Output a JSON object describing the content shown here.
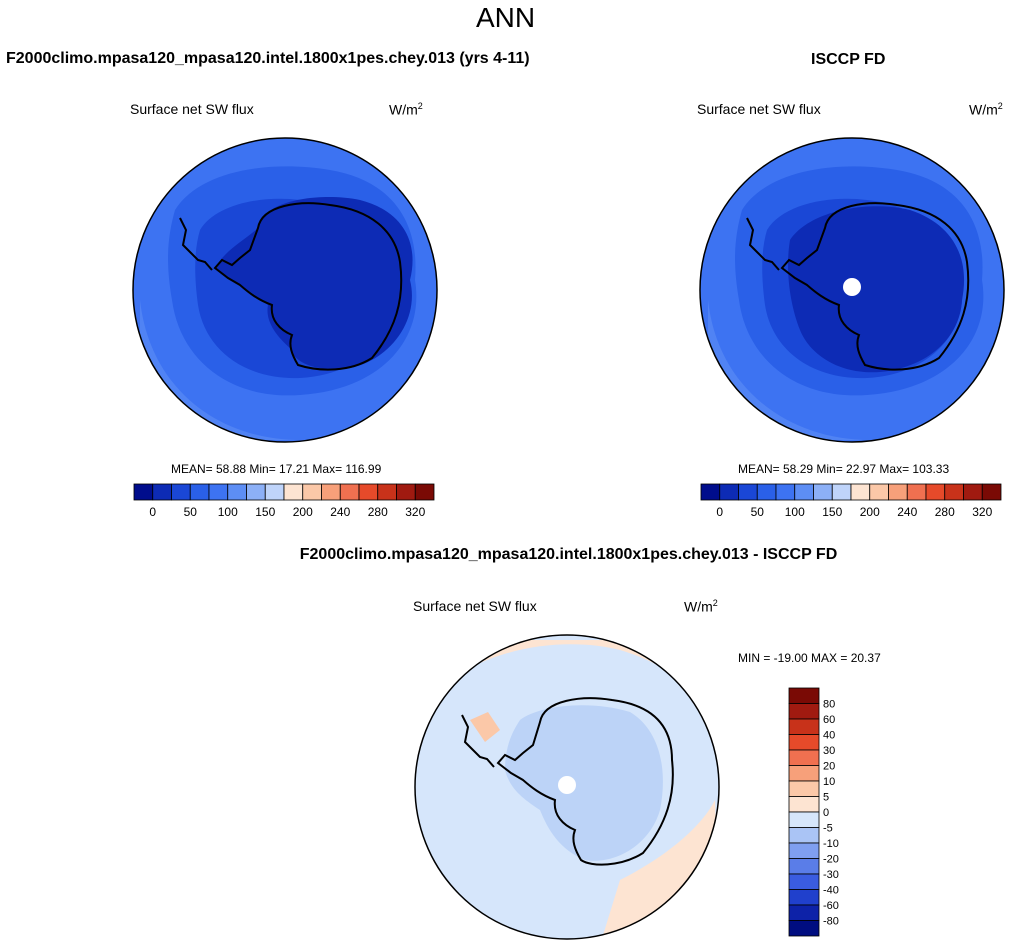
{
  "title": "ANN",
  "panels": [
    {
      "heading": "F2000climo.mpasa120_mpasa120.intel.1800x1pes.chey.013 (yrs 4-11)",
      "variable": "Surface net SW flux",
      "units_base": "W/m",
      "units_exp": "2",
      "stats": "MEAN=  58.88  Min=  17.21  Max= 116.99"
    },
    {
      "heading": "ISCCP FD",
      "variable": "Surface net SW flux",
      "units_base": "W/m",
      "units_exp": "2",
      "stats": "MEAN=  58.29  Min=  22.97  Max= 103.33"
    },
    {
      "heading": "F2000climo.mpasa120_mpasa120.intel.1800x1pes.chey.013 - ISCCP FD",
      "variable": "Surface net SW flux",
      "units_base": "W/m",
      "units_exp": "2",
      "stats": "MIN = -19.00 MAX =  20.37"
    }
  ],
  "chart_data": [
    {
      "type": "heatmap",
      "projection": "south-polar-stereographic",
      "title": "Surface net SW flux",
      "units": "W/m2",
      "stats": {
        "mean": 58.88,
        "min": 17.21,
        "max": 116.99
      },
      "colorbar_ticks": [
        "0",
        "50",
        "100",
        "150",
        "200",
        "240",
        "280",
        "320"
      ],
      "colorbar_colors": [
        "#000d8c",
        "#0d2bb5",
        "#1a47d6",
        "#2a60e8",
        "#3d73f2",
        "#5d8ef5",
        "#8cb0f7",
        "#bfd4fa",
        "#fde4d2",
        "#fbc8a8",
        "#f7a07a",
        "#f07050",
        "#e64a2a",
        "#c8321a",
        "#a01a10",
        "#7a0a05"
      ]
    },
    {
      "type": "heatmap",
      "projection": "south-polar-stereographic",
      "title": "Surface net SW flux",
      "units": "W/m2",
      "stats": {
        "mean": 58.29,
        "min": 22.97,
        "max": 103.33
      },
      "colorbar_ticks": [
        "0",
        "50",
        "100",
        "150",
        "200",
        "240",
        "280",
        "320"
      ],
      "colorbar_colors": [
        "#000d8c",
        "#0d2bb5",
        "#1a47d6",
        "#2a60e8",
        "#3d73f2",
        "#5d8ef5",
        "#8cb0f7",
        "#bfd4fa",
        "#fde4d2",
        "#fbc8a8",
        "#f7a07a",
        "#f07050",
        "#e64a2a",
        "#c8321a",
        "#a01a10",
        "#7a0a05"
      ]
    },
    {
      "type": "heatmap",
      "projection": "south-polar-stereographic",
      "title": "Surface net SW flux",
      "units": "W/m2",
      "stats": {
        "min": -19.0,
        "max": 20.37
      },
      "colorbar_ticks": [
        "80",
        "60",
        "40",
        "30",
        "20",
        "10",
        "5",
        "0",
        "-5",
        "-10",
        "-20",
        "-30",
        "-40",
        "-60",
        "-80"
      ],
      "colorbar_colors": [
        "#7a0a05",
        "#a01a10",
        "#c8321a",
        "#e64a2a",
        "#f07050",
        "#f7a07a",
        "#fbc8a8",
        "#fde4d2",
        "#d6e6fb",
        "#aac4f5",
        "#7f9ff0",
        "#5a7de8",
        "#3a5ce0",
        "#2040cc",
        "#0d22a8",
        "#000d80"
      ]
    }
  ]
}
